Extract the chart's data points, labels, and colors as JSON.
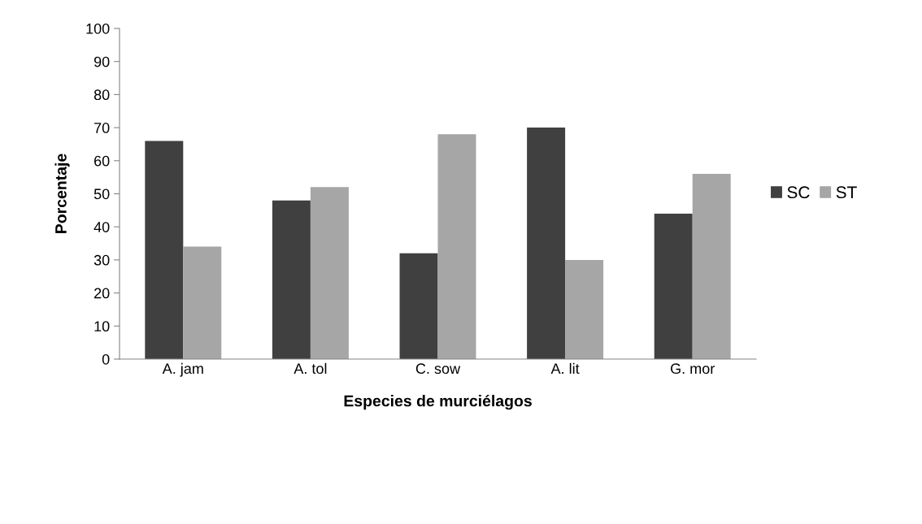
{
  "chart_data": {
    "type": "bar",
    "xlabel": "Especies de murciélagos",
    "ylabel": "Porcentaje",
    "categories": [
      "A. jam",
      "A. tol",
      "C. sow",
      "A. lit",
      "G. mor"
    ],
    "series": [
      {
        "name": "SC",
        "color": "#404040",
        "values": [
          66,
          48,
          32,
          70,
          44
        ]
      },
      {
        "name": "ST",
        "color": "#a6a6a6",
        "values": [
          34,
          52,
          68,
          30,
          56
        ]
      }
    ],
    "ylim": [
      0,
      100
    ],
    "yticks": [
      0,
      10,
      20,
      30,
      40,
      50,
      60,
      70,
      80,
      90,
      100
    ],
    "grid": false,
    "legend": "right"
  }
}
